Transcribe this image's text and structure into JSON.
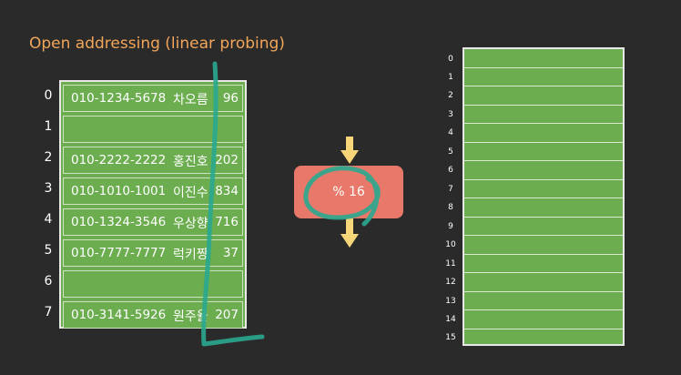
{
  "title": "Open addressing (linear probing)",
  "left_table": {
    "rows": [
      {
        "index": "0",
        "phone": "010-1234-5678",
        "name": "차오름",
        "num": "96"
      },
      {
        "index": "1",
        "phone": "",
        "name": "",
        "num": ""
      },
      {
        "index": "2",
        "phone": "010-2222-2222",
        "name": "홍진호",
        "num": "202"
      },
      {
        "index": "3",
        "phone": "010-1010-1001",
        "name": "이진수",
        "num": "834"
      },
      {
        "index": "4",
        "phone": "010-1324-3546",
        "name": "우상향",
        "num": "716"
      },
      {
        "index": "5",
        "phone": "010-7777-7777",
        "name": "럭키짱",
        "num": "37"
      },
      {
        "index": "6",
        "phone": "",
        "name": "",
        "num": ""
      },
      {
        "index": "7",
        "phone": "010-3141-5926",
        "name": "원주율",
        "num": "207"
      }
    ]
  },
  "hash_function": {
    "label": "% 16"
  },
  "right_table": {
    "indices": [
      "0",
      "1",
      "2",
      "3",
      "4",
      "5",
      "6",
      "7",
      "8",
      "9",
      "10",
      "11",
      "12",
      "13",
      "14",
      "15"
    ]
  },
  "colors": {
    "background": "#2a2a2a",
    "title": "#f2a65a",
    "cell_green": "#6cad4f",
    "hash_box": "#e8796a",
    "arrow": "#f7d67a",
    "annotation": "#2aa890"
  }
}
